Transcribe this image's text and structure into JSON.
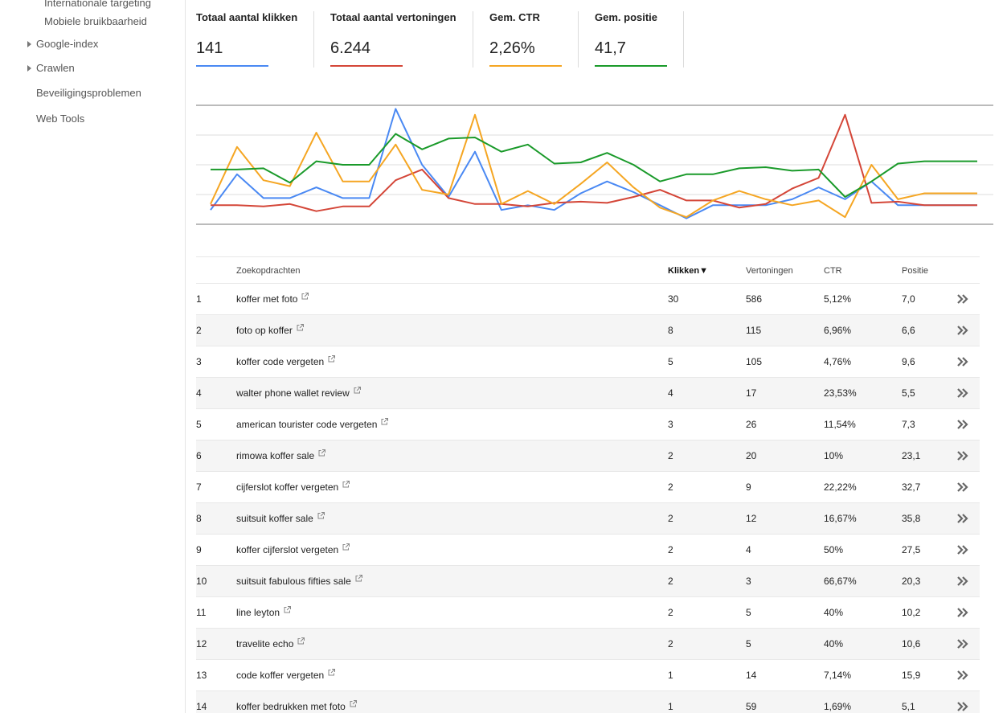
{
  "sidebar": {
    "items": [
      {
        "label": "Internationale targeting",
        "expandable": false
      },
      {
        "label": "Mobiele bruikbaarheid",
        "expandable": false
      },
      {
        "label": "Google-index",
        "expandable": true
      },
      {
        "label": "Crawlen",
        "expandable": true
      },
      {
        "label": "Beveiligingsproblemen",
        "expandable": false
      },
      {
        "label": "Web Tools",
        "expandable": false
      }
    ]
  },
  "metrics": [
    {
      "label": "Totaal aantal klikken",
      "value": "141",
      "color": "#4a89f3"
    },
    {
      "label": "Totaal aantal vertoningen",
      "value": "6.244",
      "color": "#d44638"
    },
    {
      "label": "Gem. CTR",
      "value": "2,26%",
      "color": "#f5a623"
    },
    {
      "label": "Gem. positie",
      "value": "41,7",
      "color": "#1a9a2a"
    }
  ],
  "chart_data": {
    "type": "line",
    "grid": true,
    "x": [
      1,
      2,
      3,
      4,
      5,
      6,
      7,
      8,
      9,
      10,
      11,
      12,
      13,
      14,
      15,
      16,
      17,
      18,
      19,
      20,
      21,
      22,
      23,
      24,
      25,
      26,
      27,
      28,
      29,
      30
    ],
    "ylim": [
      0,
      100
    ],
    "series": [
      {
        "name": "Totaal aantal klikken",
        "color": "#4a89f3",
        "values": [
          12,
          42,
          22,
          22,
          31,
          22,
          22,
          97,
          50,
          23,
          61,
          12,
          16,
          12,
          26,
          36,
          27,
          16,
          5,
          16,
          16,
          16,
          21,
          31,
          21,
          36,
          16,
          16,
          16,
          16
        ]
      },
      {
        "name": "Totaal aantal vertoningen",
        "color": "#d44638",
        "values": [
          16,
          16,
          15,
          17,
          11,
          15,
          15,
          37,
          46,
          22,
          17,
          17,
          15,
          18,
          19,
          18,
          23,
          29,
          20,
          20,
          14,
          17,
          30,
          39,
          92,
          18,
          19,
          16,
          16,
          16
        ]
      },
      {
        "name": "Gem. CTR",
        "color": "#f5a623",
        "values": [
          17,
          65,
          37,
          32,
          77,
          36,
          36,
          67,
          29,
          25,
          92,
          17,
          28,
          17,
          34,
          52,
          31,
          14,
          6,
          20,
          28,
          21,
          16,
          20,
          6,
          50,
          21,
          26,
          26,
          26
        ]
      },
      {
        "name": "Gem. positie",
        "color": "#1a9a2a",
        "values": [
          46,
          46,
          47,
          35,
          53,
          50,
          50,
          76,
          63,
          72,
          73,
          61,
          67,
          51,
          52,
          60,
          50,
          36,
          42,
          42,
          47,
          48,
          45,
          46,
          23,
          36,
          51,
          53,
          53,
          53
        ]
      }
    ]
  },
  "table": {
    "headers": {
      "query": "Zoekopdrachten",
      "clicks": "Klikken",
      "clicks_sort_indicator": "▼",
      "impressions": "Vertoningen",
      "ctr": "CTR",
      "position": "Positie"
    },
    "rows": [
      {
        "num": "1",
        "query": "koffer met foto",
        "clicks": "30",
        "impressions": "586",
        "ctr": "5,12%",
        "position": "7,0"
      },
      {
        "num": "2",
        "query": "foto op koffer",
        "clicks": "8",
        "impressions": "115",
        "ctr": "6,96%",
        "position": "6,6"
      },
      {
        "num": "3",
        "query": "koffer code vergeten",
        "clicks": "5",
        "impressions": "105",
        "ctr": "4,76%",
        "position": "9,6"
      },
      {
        "num": "4",
        "query": "walter phone wallet review",
        "clicks": "4",
        "impressions": "17",
        "ctr": "23,53%",
        "position": "5,5"
      },
      {
        "num": "5",
        "query": "american tourister code vergeten",
        "clicks": "3",
        "impressions": "26",
        "ctr": "11,54%",
        "position": "7,3"
      },
      {
        "num": "6",
        "query": "rimowa koffer sale",
        "clicks": "2",
        "impressions": "20",
        "ctr": "10%",
        "position": "23,1"
      },
      {
        "num": "7",
        "query": "cijferslot koffer vergeten",
        "clicks": "2",
        "impressions": "9",
        "ctr": "22,22%",
        "position": "32,7"
      },
      {
        "num": "8",
        "query": "suitsuit koffer sale",
        "clicks": "2",
        "impressions": "12",
        "ctr": "16,67%",
        "position": "35,8"
      },
      {
        "num": "9",
        "query": "koffer cijferslot vergeten",
        "clicks": "2",
        "impressions": "4",
        "ctr": "50%",
        "position": "27,5"
      },
      {
        "num": "10",
        "query": "suitsuit fabulous fifties sale",
        "clicks": "2",
        "impressions": "3",
        "ctr": "66,67%",
        "position": "20,3"
      },
      {
        "num": "11",
        "query": "line leyton",
        "clicks": "2",
        "impressions": "5",
        "ctr": "40%",
        "position": "10,2"
      },
      {
        "num": "12",
        "query": "travelite echo",
        "clicks": "2",
        "impressions": "5",
        "ctr": "40%",
        "position": "10,6"
      },
      {
        "num": "13",
        "query": "code koffer vergeten",
        "clicks": "1",
        "impressions": "14",
        "ctr": "7,14%",
        "position": "15,9"
      },
      {
        "num": "14",
        "query": "koffer bedrukken met foto",
        "clicks": "1",
        "impressions": "59",
        "ctr": "1,69%",
        "position": "5,1"
      }
    ]
  },
  "icons": {
    "external_link": "external-link-icon",
    "row_details": "double-chevron-right-icon",
    "expand": "triangle-right-icon"
  }
}
